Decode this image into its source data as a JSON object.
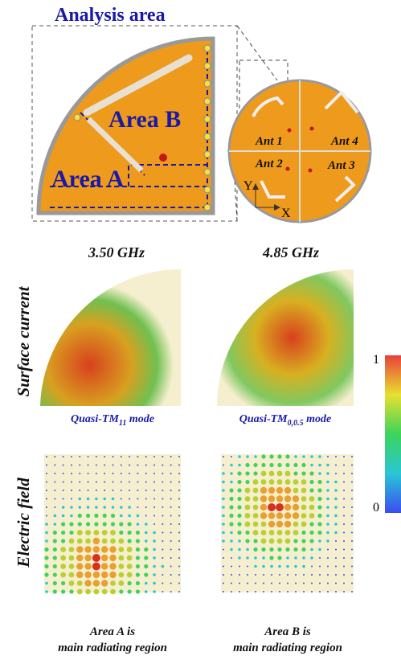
{
  "title": "Analysis area",
  "quarter_labels": {
    "area_a": "Area A",
    "area_b": "Area B"
  },
  "antennas": [
    "Ant 1",
    "Ant 4",
    "Ant 2",
    "Ant 3"
  ],
  "axes": {
    "y": "Y",
    "x": "X"
  },
  "frequencies": [
    "3.50 GHz",
    "4.85 GHz"
  ],
  "row_labels": [
    "Surface current",
    "Electric field"
  ],
  "modes": [
    {
      "prefix": "Quasi-TM",
      "subscript": "11",
      "suffix": " mode"
    },
    {
      "prefix": "Quasi-TM",
      "subscript": "0,0.5",
      "suffix": " mode"
    }
  ],
  "colorbar": {
    "max": 1,
    "min": 0
  },
  "captions": [
    {
      "line1": "Area A is",
      "line2": "main radiating region"
    },
    {
      "line1": "Area B is",
      "line2": "main radiating region"
    }
  ]
}
